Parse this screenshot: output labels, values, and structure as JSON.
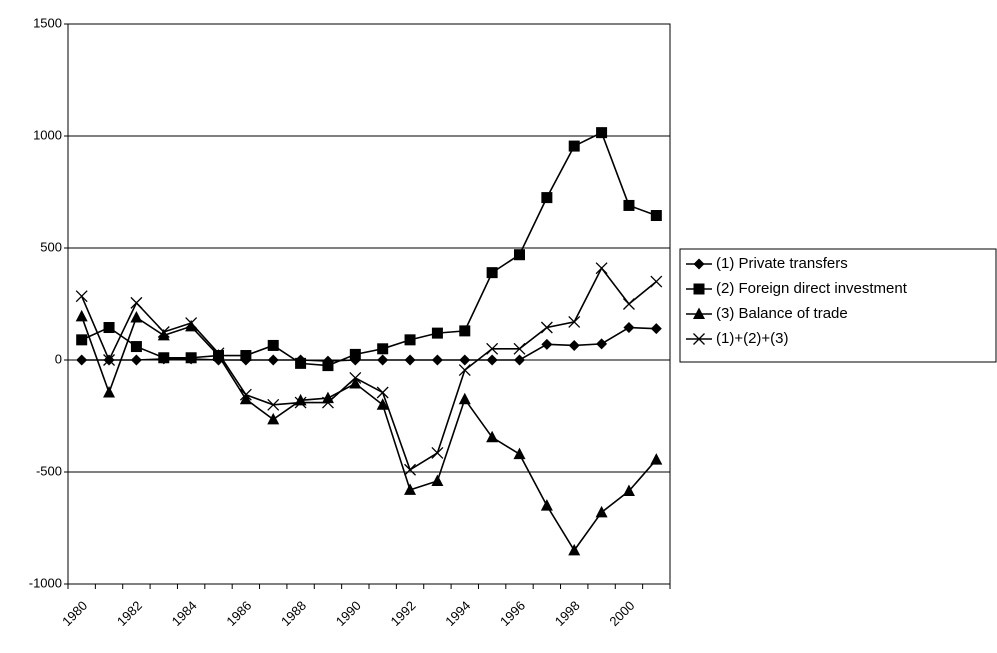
{
  "chart_data": {
    "type": "line",
    "categories": [
      "1980",
      null,
      "1982",
      null,
      "1984",
      null,
      "1986",
      null,
      "1988",
      null,
      "1990",
      null,
      "1992",
      null,
      "1994",
      null,
      "1996",
      null,
      "1998",
      null,
      "2000",
      null
    ],
    "series": [
      {
        "name": "(1) Private transfers",
        "marker": "diamond",
        "color": "#000000",
        "values": [
          0,
          0,
          0,
          5,
          5,
          0,
          0,
          0,
          0,
          -5,
          0,
          0,
          0,
          0,
          0,
          0,
          0,
          70,
          65,
          72,
          145,
          140
        ]
      },
      {
        "name": "(2) Foreign direct investment",
        "marker": "square",
        "color": "#000000",
        "values": [
          90,
          145,
          60,
          10,
          10,
          20,
          20,
          65,
          -15,
          -25,
          25,
          50,
          90,
          120,
          130,
          390,
          470,
          725,
          955,
          1015,
          690,
          645
        ]
      },
      {
        "name": "(3) Balance of trade",
        "marker": "triangle",
        "color": "#000000",
        "values": [
          195,
          -145,
          190,
          110,
          150,
          20,
          -175,
          -265,
          -180,
          -170,
          -105,
          -200,
          -580,
          -540,
          -175,
          -345,
          -420,
          -650,
          -850,
          -680,
          -585,
          -445
        ]
      },
      {
        "name": "(1)+(2)+(3)",
        "marker": "x",
        "color": "#000000",
        "values": [
          285,
          0,
          255,
          125,
          165,
          30,
          -155,
          -200,
          -190,
          -190,
          -80,
          -145,
          -490,
          -415,
          -45,
          50,
          50,
          145,
          170,
          410,
          250,
          350
        ]
      }
    ],
    "ylim": [
      -1000,
      1500
    ],
    "yticks": [
      -1000,
      -500,
      0,
      500,
      1000,
      1500
    ],
    "grid": true,
    "legend": "right"
  }
}
